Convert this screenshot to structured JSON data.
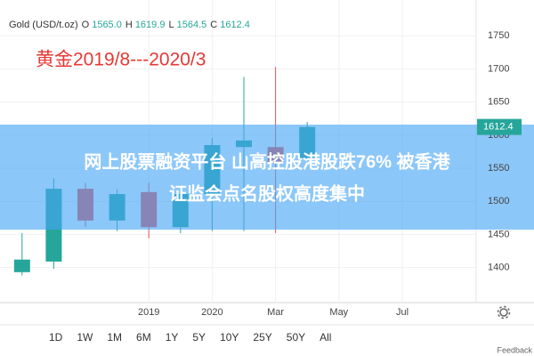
{
  "chart_data": {
    "type": "candlestick",
    "header": {
      "symbol": "Gold (USD/t.oz)",
      "fields": [
        {
          "key": "O",
          "value": "1565.0"
        },
        {
          "key": "H",
          "value": "1619.9"
        },
        {
          "key": "L",
          "value": "1564.5"
        },
        {
          "key": "C",
          "value": "1612.4"
        }
      ]
    },
    "annotation": "黄金2019/8---2020/3",
    "categories": [
      null,
      null,
      null,
      null,
      "2019",
      null,
      "2020",
      null,
      "Mar",
      null,
      "May",
      null,
      "Jul"
    ],
    "open": [
      1393,
      1409,
      1519,
      1471,
      1514,
      1461,
      1511,
      1582,
      1582,
      1565,
      null,
      null,
      null
    ],
    "high": [
      1452,
      1535,
      1528,
      1518,
      1528,
      1522,
      1596,
      1688,
      1703,
      1619.9,
      null,
      null,
      null
    ],
    "low": [
      1388,
      1398,
      1461,
      1455,
      1444,
      1452,
      1455,
      1455,
      1452,
      1564.5,
      null,
      null,
      null
    ],
    "close": [
      1412,
      1519,
      1471,
      1511,
      1461,
      1511,
      1585,
      1592,
      1559,
      1612.4,
      null,
      null,
      null
    ],
    "up_color": "#26a69a",
    "down_color": "#ef5350",
    "ylim": [
      1347,
      1780
    ],
    "yticks": [
      1400,
      1450,
      1500,
      1550,
      1600,
      1650,
      1700,
      1750
    ],
    "grid": true
  },
  "overlay": {
    "lines": [
      "网上股票融资平台 山高控股港股跌76% 被香港",
      "证监会点名股权高度集中"
    ]
  },
  "range_buttons": [
    "1D",
    "1W",
    "1M",
    "6M",
    "1Y",
    "5Y",
    "10Y",
    "25Y",
    "50Y",
    "All"
  ],
  "feedback": "Feedback"
}
